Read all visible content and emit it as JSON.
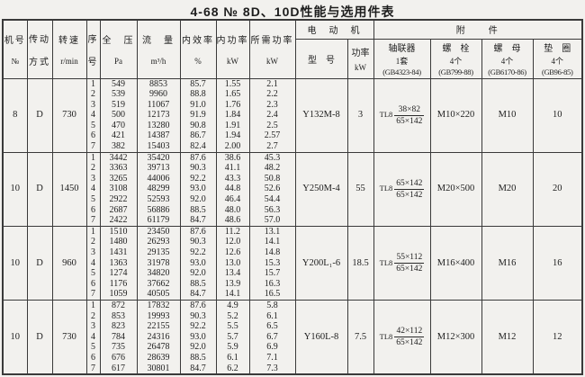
{
  "title": "4-68  №  8D、10D性能与选用件表",
  "table": {
    "headers": {
      "machine": {
        "line1": "机号",
        "line2": "№"
      },
      "drive": {
        "line1": "传动",
        "line2": "方式"
      },
      "speed": {
        "line1": "转速",
        "line2": "r/min"
      },
      "seq": {
        "line1": "序",
        "line2": "号"
      },
      "pressure": {
        "line1": "全　压",
        "line2": "Pa"
      },
      "flow": {
        "line1": "流　量",
        "line2": "m³/h"
      },
      "efficiency": {
        "line1": "内效率",
        "line2": "%"
      },
      "internal_power": {
        "line1": "内功率",
        "line2": "kW"
      },
      "required_power": {
        "line1": "所需功率",
        "line2": "kW"
      },
      "motor_group": "电　动　机",
      "motor_model": "型　号",
      "motor_power": {
        "line1": "功率",
        "line2": "kW"
      },
      "accessories_group": "附　　件",
      "coupling": {
        "line1": "轴联器",
        "line2": "1套",
        "line3": "(GB4323-84)"
      },
      "bolt": {
        "line1": "螺　栓",
        "line2": "4个",
        "line3": "(GB799-88)"
      },
      "nut": {
        "line1": "螺　母",
        "line2": "4个",
        "line3": "(GB6170-86)"
      },
      "washer": {
        "line1": "垫　圈",
        "line2": "4个",
        "line3": "(GB96-85)"
      }
    },
    "blocks": [
      {
        "machine_no": "8",
        "drive": "D",
        "speed": "730",
        "rows": [
          [
            "1",
            "549",
            "8853",
            "85.7",
            "1.55",
            "2.1"
          ],
          [
            "2",
            "539",
            "9960",
            "88.8",
            "1.65",
            "2.2"
          ],
          [
            "3",
            "519",
            "11067",
            "91.0",
            "1.76",
            "2.3"
          ],
          [
            "4",
            "500",
            "12173",
            "91.9",
            "1.84",
            "2.4"
          ],
          [
            "5",
            "470",
            "13280",
            "90.8",
            "1.91",
            "2.5"
          ],
          [
            "6",
            "421",
            "14387",
            "86.7",
            "1.94",
            "2.57"
          ],
          [
            "7",
            "382",
            "15403",
            "82.4",
            "2.00",
            "2.7"
          ]
        ],
        "motor_model": "Y132M-8",
        "motor_power": "3",
        "coupling_prefix": "TL8",
        "coupling_top": "38×82",
        "coupling_bottom": "65×142",
        "bolt": "M10×220",
        "nut": "M10",
        "washer": "10"
      },
      {
        "machine_no": "10",
        "drive": "D",
        "speed": "1450",
        "rows": [
          [
            "1",
            "3442",
            "35420",
            "87.6",
            "38.6",
            "45.3"
          ],
          [
            "2",
            "3363",
            "39713",
            "90.3",
            "41.1",
            "48.2"
          ],
          [
            "3",
            "3265",
            "44006",
            "92.2",
            "43.3",
            "50.8"
          ],
          [
            "4",
            "3108",
            "48299",
            "93.0",
            "44.8",
            "52.6"
          ],
          [
            "5",
            "2922",
            "52593",
            "92.0",
            "46.4",
            "54.4"
          ],
          [
            "6",
            "2687",
            "56886",
            "88.5",
            "48.0",
            "56.3"
          ],
          [
            "7",
            "2422",
            "61179",
            "84.7",
            "48.6",
            "57.0"
          ]
        ],
        "motor_model": "Y250M-4",
        "motor_power": "55",
        "coupling_prefix": "TL8",
        "coupling_top": "65×142",
        "coupling_bottom": "65×142",
        "bolt": "M20×500",
        "nut": "M20",
        "washer": "20"
      },
      {
        "machine_no": "10",
        "drive": "D",
        "speed": "960",
        "rows": [
          [
            "1",
            "1510",
            "23450",
            "87.6",
            "11.2",
            "13.1"
          ],
          [
            "2",
            "1480",
            "26293",
            "90.3",
            "12.0",
            "14.1"
          ],
          [
            "3",
            "1431",
            "29135",
            "92.2",
            "12.6",
            "14.8"
          ],
          [
            "4",
            "1363",
            "31978",
            "93.0",
            "13.0",
            "15.3"
          ],
          [
            "5",
            "1274",
            "34820",
            "92.0",
            "13.4",
            "15.7"
          ],
          [
            "6",
            "1176",
            "37662",
            "88.5",
            "13.9",
            "16.3"
          ],
          [
            "7",
            "1059",
            "40505",
            "84.7",
            "14.1",
            "16.5"
          ]
        ],
        "motor_model": "Y200L₁-6",
        "motor_power": "18.5",
        "coupling_prefix": "TL8",
        "coupling_top": "55×112",
        "coupling_bottom": "65×142",
        "bolt": "M16×400",
        "nut": "M16",
        "washer": "16"
      },
      {
        "machine_no": "10",
        "drive": "D",
        "speed": "730",
        "rows": [
          [
            "1",
            "872",
            "17832",
            "87.6",
            "4.9",
            "5.8"
          ],
          [
            "2",
            "853",
            "19993",
            "90.3",
            "5.2",
            "6.1"
          ],
          [
            "3",
            "823",
            "22155",
            "92.2",
            "5.5",
            "6.5"
          ],
          [
            "4",
            "784",
            "24316",
            "93.0",
            "5.7",
            "6.7"
          ],
          [
            "5",
            "735",
            "26478",
            "92.0",
            "5.9",
            "6.9"
          ],
          [
            "6",
            "676",
            "28639",
            "88.5",
            "6.1",
            "7.1"
          ],
          [
            "7",
            "617",
            "30801",
            "84.7",
            "6.2",
            "7.3"
          ]
        ],
        "motor_model": "Y160L-8",
        "motor_power": "7.5",
        "coupling_prefix": "TL8",
        "coupling_top": "42×112",
        "coupling_bottom": "65×142",
        "bolt": "M12×300",
        "nut": "M12",
        "washer": "12"
      }
    ]
  }
}
